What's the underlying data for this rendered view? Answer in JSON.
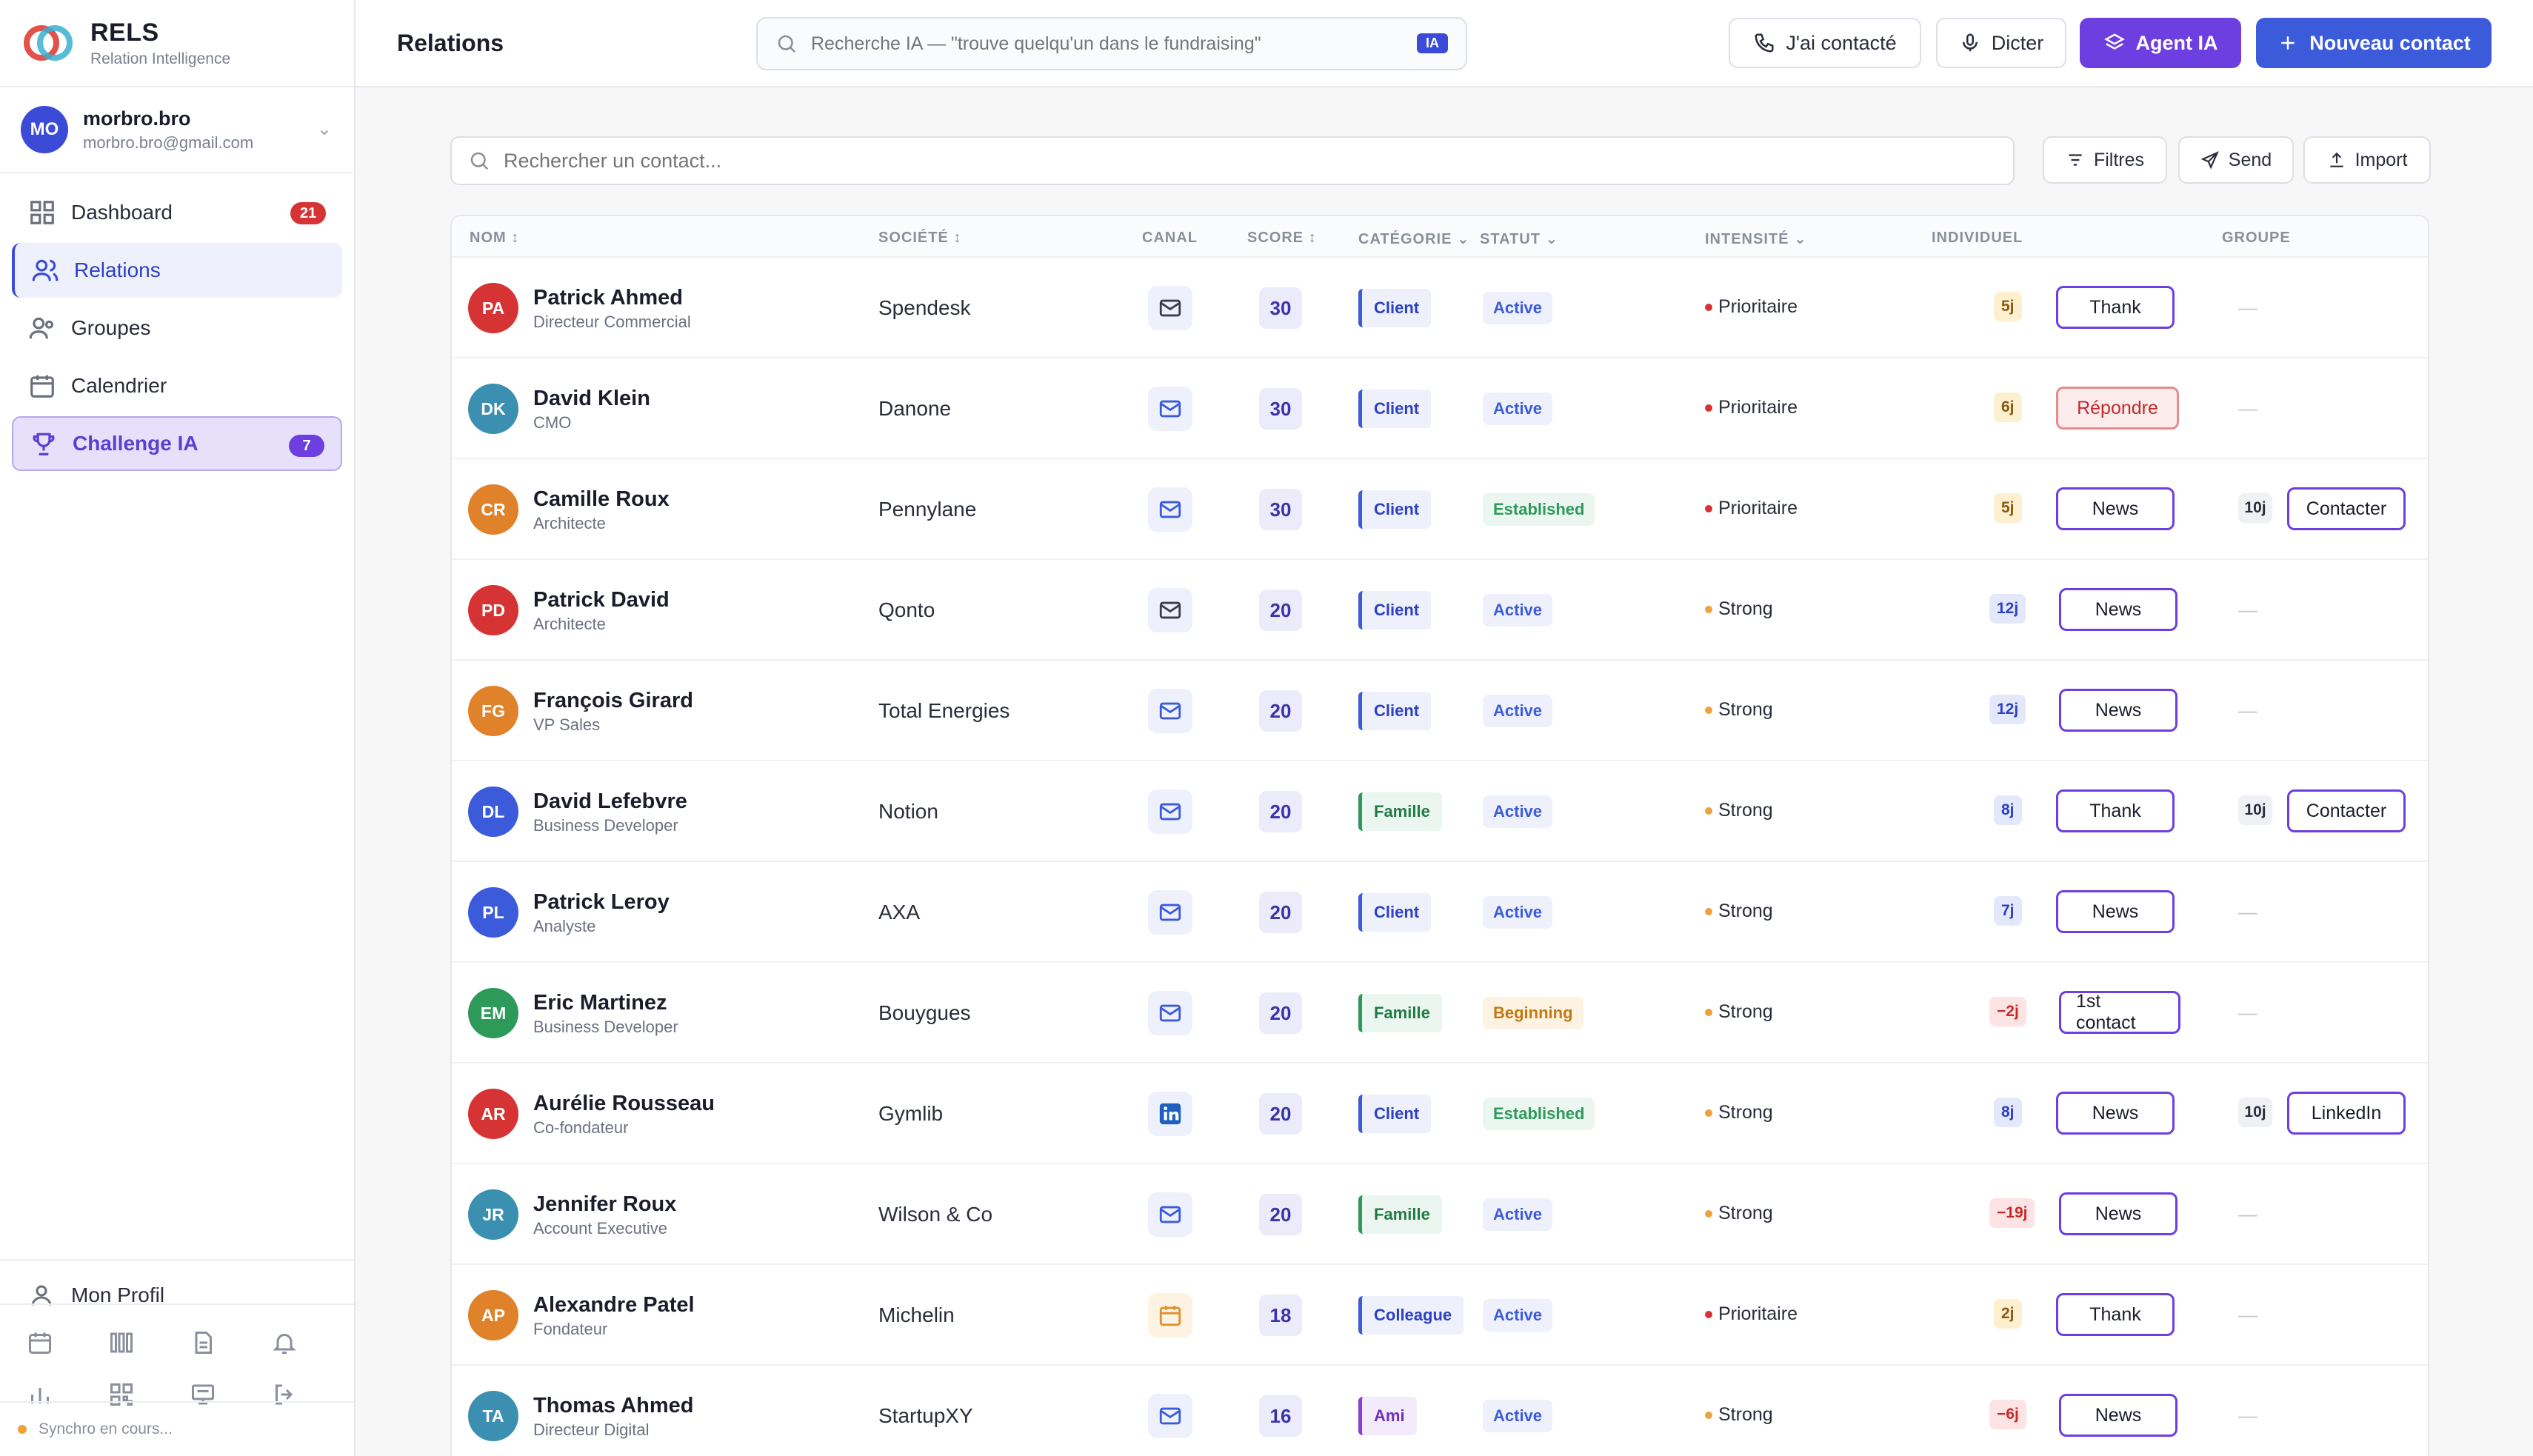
{
  "brand": {
    "name": "RELS",
    "subtitle": "Relation Intelligence"
  },
  "user": {
    "initials": "MO",
    "name": "morbro.bro",
    "email": "morbro.bro@gmail.com"
  },
  "nav": [
    {
      "label": "Dashboard",
      "icon": "grid-icon",
      "badge": "21"
    },
    {
      "label": "Relations",
      "icon": "users-icon",
      "active": true
    },
    {
      "label": "Groupes",
      "icon": "group-icon"
    },
    {
      "label": "Calendrier",
      "icon": "calendar-icon"
    },
    {
      "label": "Challenge IA",
      "icon": "trophy-icon",
      "badge": "7"
    }
  ],
  "profile_label": "Mon Profil",
  "sync_text": "Synchro en cours...",
  "topbar": {
    "title": "Relations",
    "ai_search_placeholder": "Recherche IA — \"trouve quelqu'un dans le fundraising\"",
    "ai_tag": "IA",
    "contacted_label": "J'ai contacté",
    "dictate_label": "Dicter",
    "agent_label": "Agent IA",
    "new_contact_label": "Nouveau contact"
  },
  "toolbar": {
    "search_placeholder": "Rechercher un contact...",
    "filters_label": "Filtres",
    "send_label": "Send",
    "import_label": "Import"
  },
  "columns": {
    "name": "NOM ↕",
    "company": "SOCIÉTÉ ↕",
    "channel": "CANAL",
    "score": "SCORE ↕",
    "category": "CATÉGORIE ⌄",
    "status": "STATUT ⌄",
    "intensity": "INTENSITÉ ⌄",
    "individual": "INDIVIDUEL",
    "group": "GROUPE"
  },
  "colors": {
    "accent": "#3b5bdb",
    "agent": "#6d3fe0",
    "danger": "#d63434"
  },
  "rows": [
    {
      "initials": "PA",
      "name": "Patrick Ahmed",
      "title": "Directeur Commercial",
      "company": "Spendesk",
      "channel": "mail-icon",
      "score": "30",
      "category": "Client",
      "status": "Active",
      "intensity": "Prioritaire",
      "ind_days": "5j",
      "ind_action": "Thank",
      "grp_days": "",
      "grp_action": "",
      "avatar_color": "#d63434"
    },
    {
      "initials": "DK",
      "name": "David Klein",
      "title": "CMO",
      "company": "Danone",
      "channel": "mail-icon",
      "score": "30",
      "category": "Client",
      "status": "Active",
      "intensity": "Prioritaire",
      "ind_days": "6j",
      "ind_action": "Répondre",
      "grp_days": "",
      "grp_action": "",
      "avatar_color": "#3b8fb0"
    },
    {
      "initials": "CR",
      "name": "Camille Roux",
      "title": "Architecte",
      "company": "Pennylane",
      "channel": "mail-icon",
      "score": "30",
      "category": "Client",
      "status": "Established",
      "intensity": "Prioritaire",
      "ind_days": "5j",
      "ind_action": "News",
      "grp_days": "10j",
      "grp_action": "Contacter",
      "avatar_color": "#e0822a"
    },
    {
      "initials": "PD",
      "name": "Patrick David",
      "title": "Architecte",
      "company": "Qonto",
      "channel": "mail-icon",
      "score": "20",
      "category": "Client",
      "status": "Active",
      "intensity": "Strong",
      "ind_days": "12j",
      "ind_action": "News",
      "grp_days": "",
      "grp_action": "",
      "avatar_color": "#d63434"
    },
    {
      "initials": "FG",
      "name": "François Girard",
      "title": "VP Sales",
      "company": "Total Energies",
      "channel": "mail-icon",
      "score": "20",
      "category": "Client",
      "status": "Active",
      "intensity": "Strong",
      "ind_days": "12j",
      "ind_action": "News",
      "grp_days": "",
      "grp_action": "",
      "avatar_color": "#e0822a"
    },
    {
      "initials": "DL",
      "name": "David Lefebvre",
      "title": "Business Developer",
      "company": "Notion",
      "channel": "mail-icon",
      "score": "20",
      "category": "Famille",
      "status": "Active",
      "intensity": "Strong",
      "ind_days": "8j",
      "ind_action": "Thank",
      "grp_days": "10j",
      "grp_action": "Contacter",
      "avatar_color": "#3b5bdb"
    },
    {
      "initials": "PL",
      "name": "Patrick Leroy",
      "title": "Analyste",
      "company": "AXA",
      "channel": "mail-icon",
      "score": "20",
      "category": "Client",
      "status": "Active",
      "intensity": "Strong",
      "ind_days": "7j",
      "ind_action": "News",
      "grp_days": "",
      "grp_action": "",
      "avatar_color": "#3b5bdb"
    },
    {
      "initials": "EM",
      "name": "Eric Martinez",
      "title": "Business Developer",
      "company": "Bouygues",
      "channel": "mail-icon",
      "score": "20",
      "category": "Famille",
      "status": "Beginning",
      "intensity": "Strong",
      "ind_days": "−2j",
      "ind_action": "1st contact",
      "grp_days": "",
      "grp_action": "",
      "avatar_color": "#2e9a5a"
    },
    {
      "initials": "AR",
      "name": "Aurélie Rousseau",
      "title": "Co-fondateur",
      "company": "Gymlib",
      "channel": "linkedin-icon",
      "score": "20",
      "category": "Client",
      "status": "Established",
      "intensity": "Strong",
      "ind_days": "8j",
      "ind_action": "News",
      "grp_days": "10j",
      "grp_action": "LinkedIn",
      "avatar_color": "#d63434"
    },
    {
      "initials": "JR",
      "name": "Jennifer Roux",
      "title": "Account Executive",
      "company": "Wilson & Co",
      "channel": "mail-icon",
      "score": "20",
      "category": "Famille",
      "status": "Active",
      "intensity": "Strong",
      "ind_days": "−19j",
      "ind_action": "News",
      "grp_days": "",
      "grp_action": "",
      "avatar_color": "#3b8fb0"
    },
    {
      "initials": "AP",
      "name": "Alexandre Patel",
      "title": "Fondateur",
      "company": "Michelin",
      "channel": "calendar-icon",
      "score": "18",
      "category": "Colleague",
      "status": "Active",
      "intensity": "Prioritaire",
      "ind_days": "2j",
      "ind_action": "Thank",
      "grp_days": "",
      "grp_action": "",
      "avatar_color": "#e0822a"
    },
    {
      "initials": "TA",
      "name": "Thomas Ahmed",
      "title": "Directeur Digital",
      "company": "StartupXY",
      "channel": "mail-icon",
      "score": "16",
      "category": "Ami",
      "status": "Active",
      "intensity": "Strong",
      "ind_days": "−6j",
      "ind_action": "News",
      "grp_days": "",
      "grp_action": "",
      "avatar_color": "#3b8fb0"
    }
  ],
  "empty_group": "—"
}
